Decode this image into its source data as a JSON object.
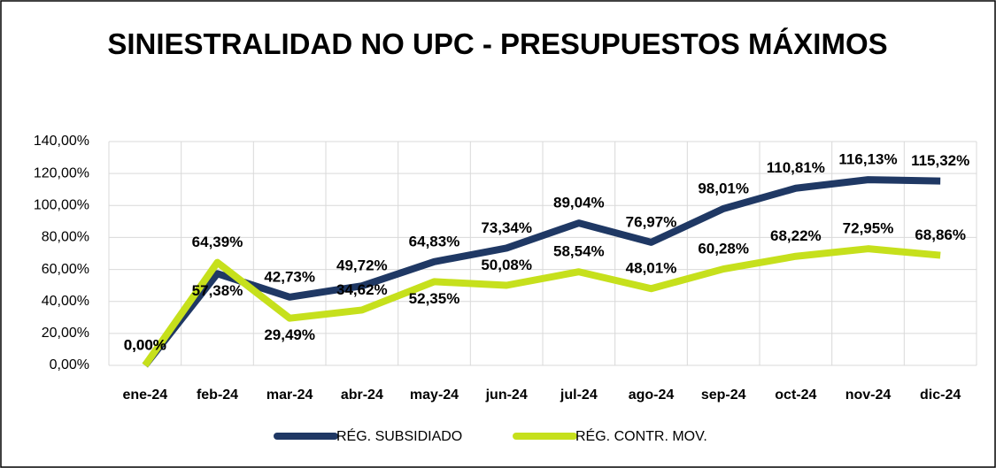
{
  "chart_data": {
    "type": "line",
    "title": "SINIESTRALIDAD NO UPC - PRESUPUESTOS MÁXIMOS",
    "categories": [
      "ene-24",
      "feb-24",
      "mar-24",
      "abr-24",
      "may-24",
      "jun-24",
      "jul-24",
      "ago-24",
      "sep-24",
      "oct-24",
      "nov-24",
      "dic-24"
    ],
    "series": [
      {
        "name": "RÉG. SUBSIDIADO",
        "color": "#1f3864",
        "values": [
          0,
          57.38,
          42.73,
          49.72,
          64.83,
          73.34,
          89.04,
          76.97,
          98.01,
          110.81,
          116.13,
          115.32
        ],
        "value_labels": [
          "0,00%",
          "57,38%",
          "42,73%",
          "49,72%",
          "64,83%",
          "73,34%",
          "89,04%",
          "76,97%",
          "98,01%",
          "110,81%",
          "116,13%",
          "115,32%"
        ]
      },
      {
        "name": "RÉG. CONTR. MOV.",
        "color": "#c6e01c",
        "values": [
          0,
          64.39,
          29.49,
          34.62,
          52.35,
          50.08,
          58.54,
          48.01,
          60.28,
          68.22,
          72.95,
          68.86
        ],
        "value_labels": [
          "0,00%",
          "64,39%",
          "29,49%",
          "34,62%",
          "52,35%",
          "50,08%",
          "58,54%",
          "48,01%",
          "60,28%",
          "68,22%",
          "72,95%",
          "68,86%"
        ]
      }
    ],
    "ylim": [
      0,
      140
    ],
    "yticks": [
      {
        "value": 0,
        "label": "0,00%"
      },
      {
        "value": 20,
        "label": "20,00%"
      },
      {
        "value": 40,
        "label": "40,00%"
      },
      {
        "value": 60,
        "label": "60,00%"
      },
      {
        "value": 80,
        "label": "80,00%"
      },
      {
        "value": 100,
        "label": "100,00%"
      },
      {
        "value": 120,
        "label": "120,00%"
      },
      {
        "value": 140,
        "label": "140,00%"
      }
    ],
    "grid": true,
    "legend": "bottom"
  }
}
